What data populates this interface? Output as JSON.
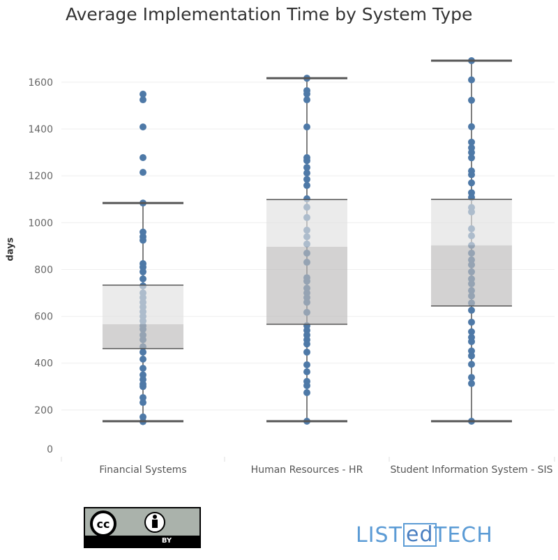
{
  "chart_data": {
    "type": "box-plot with points",
    "title": "Average Implementation Time by System Type",
    "ylabel": "days",
    "xlabel": "",
    "ylim": [
      0,
      1750
    ],
    "yticks": [
      0,
      200,
      400,
      600,
      800,
      1000,
      1200,
      1400,
      1600
    ],
    "grid": true,
    "categories": [
      "Financial Systems",
      "Human Resources - HR",
      "Student Information System - SIS"
    ],
    "boxes": [
      {
        "min": 152,
        "q1": 462,
        "median": 566,
        "q3": 733,
        "max": 1084
      },
      {
        "min": 152,
        "q1": 566,
        "median": 897,
        "q3": 1099,
        "max": 1617
      },
      {
        "min": 152,
        "q1": 644,
        "median": 903,
        "q3": 1100,
        "max": 1692
      }
    ],
    "points": [
      [
        1549,
        1525,
        1409,
        1278,
        1215,
        1084,
        960,
        940,
        925,
        825,
        810,
        790,
        760,
        730,
        700,
        680,
        660,
        640,
        620,
        600,
        580,
        560,
        545,
        520,
        500,
        470,
        447,
        417,
        378,
        350,
        330,
        310,
        300,
        253,
        232,
        170,
        150
      ],
      [
        1617,
        1564,
        1550,
        1525,
        1409,
        1278,
        1265,
        1236,
        1212,
        1185,
        1159,
        1102,
        1066,
        1022,
        968,
        940,
        909,
        870,
        831,
        765,
        750,
        720,
        700,
        680,
        660,
        617,
        560,
        540,
        520,
        500,
        482,
        447,
        393,
        363,
        322,
        304,
        274,
        152
      ],
      [
        1692,
        1610,
        1523,
        1410,
        1344,
        1320,
        1300,
        1277,
        1221,
        1205,
        1170,
        1128,
        1108,
        1065,
        1046,
        974,
        944,
        903,
        870,
        841,
        820,
        790,
        760,
        739,
        710,
        687,
        657,
        626,
        575,
        534,
        510,
        492,
        452,
        431,
        395,
        339,
        313,
        152
      ]
    ],
    "colors": {
      "points": "#4e79a7",
      "box_upper": "#e0e0e0",
      "box_lower": "#bcbaba",
      "whisker": "#555555"
    }
  },
  "footer": {
    "license": "BY",
    "logo": {
      "pre": "LIST",
      "mid": "ed",
      "post": "TECH"
    }
  }
}
